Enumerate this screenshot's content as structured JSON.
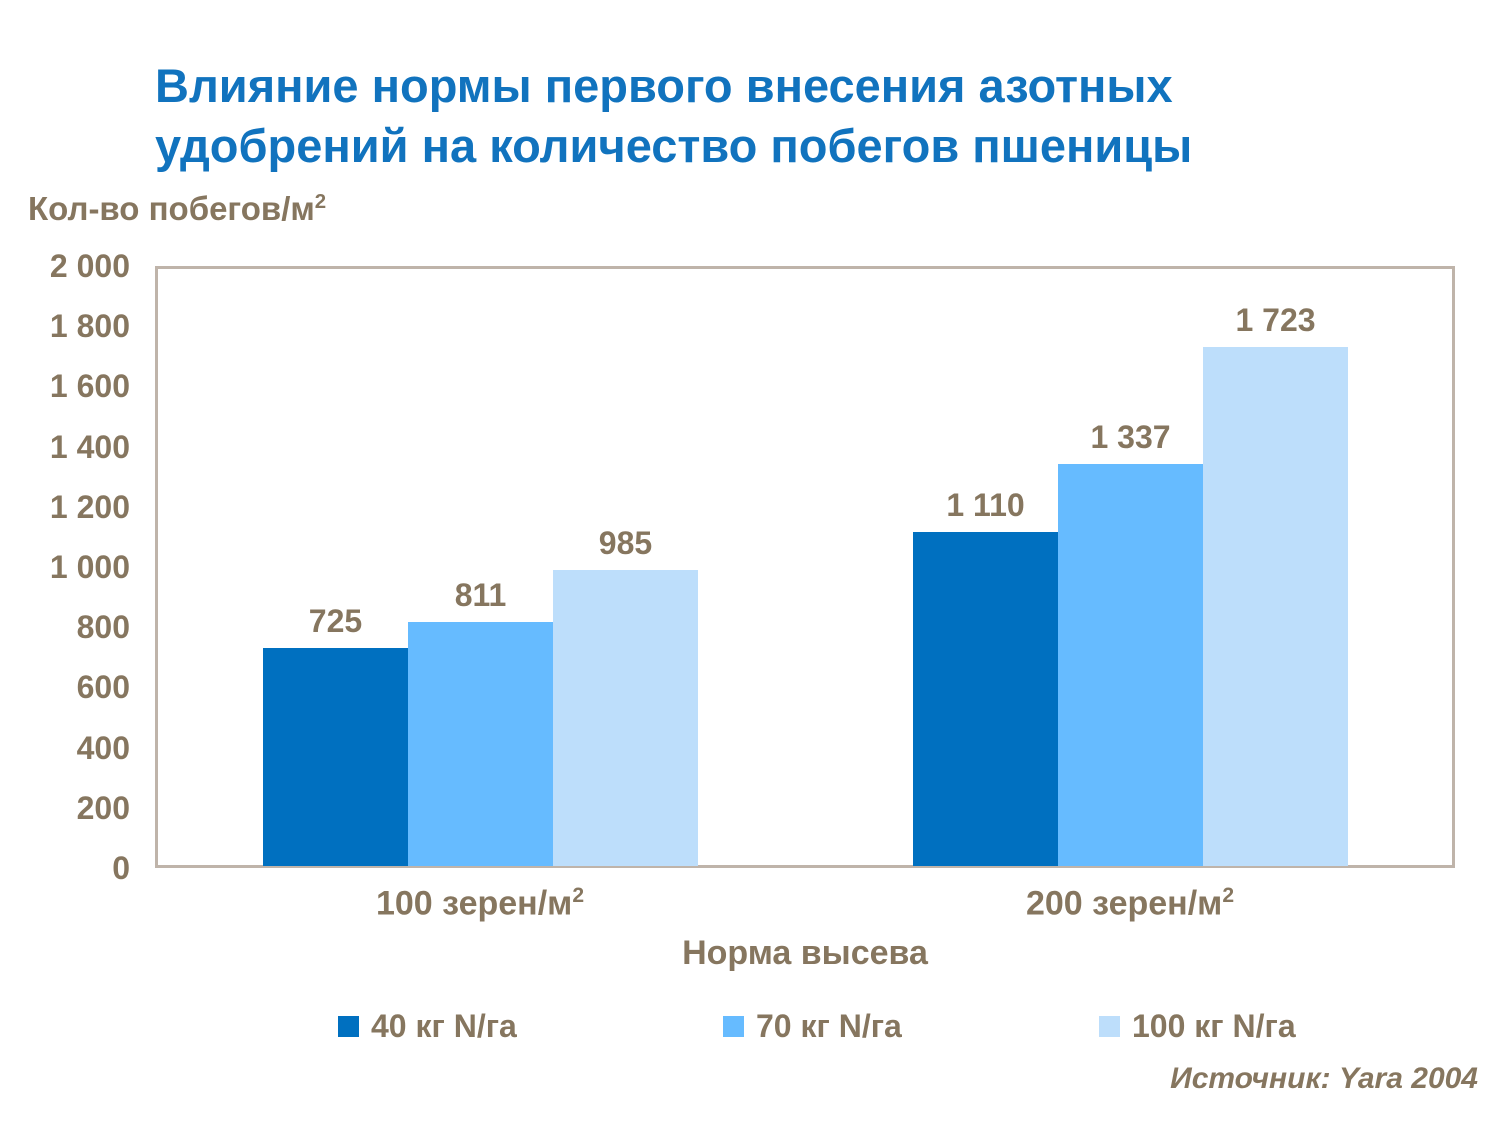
{
  "header": {
    "title_line1": "Влияние нормы первого внесения азотных",
    "title_line2": "удобрений на количество побегов пшеницы"
  },
  "y_axis": {
    "label_base": "Кол-во побегов/м",
    "label_sup": "2"
  },
  "x_axis": {
    "title": "Норма высева"
  },
  "source": "Источник: Yara 2004",
  "colors": {
    "title": "#1173BE",
    "axis_text": "#86765F",
    "plot_border": "#BFB4AA",
    "series": [
      "#0070C0",
      "#66BBFF",
      "#BDDEFB"
    ]
  },
  "chart_data": {
    "type": "bar",
    "title": "Влияние нормы первого внесения азотных удобрений на количество побегов пшеницы",
    "ylabel": "Кол-во побегов/м2",
    "xlabel": "Норма высева",
    "ylim": [
      0,
      2000
    ],
    "y_tick_step": 200,
    "y_tick_labels": [
      "0",
      "200",
      "400",
      "600",
      "800",
      "1 000",
      "1 200",
      "1 400",
      "1 600",
      "1 800",
      "2 000"
    ],
    "grid": false,
    "legend_position": "bottom",
    "categories": [
      {
        "label": "100 зерен/м2",
        "base": "100 зерен/м",
        "sup": "2"
      },
      {
        "label": "200 зерен/м2",
        "base": "200 зерен/м",
        "sup": "2"
      }
    ],
    "series": [
      {
        "name": "40 кг N/га",
        "color": "#0070C0",
        "values": [
          725,
          1110
        ],
        "value_labels": [
          "725",
          "1 110"
        ]
      },
      {
        "name": "70 кг N/га",
        "color": "#66BBFF",
        "values": [
          811,
          1337
        ],
        "value_labels": [
          "811",
          "1 337"
        ]
      },
      {
        "name": "100 кг N/га",
        "color": "#BDDEFB",
        "values": [
          985,
          1723
        ],
        "value_labels": [
          "985",
          "1 723"
        ]
      }
    ],
    "source": "Источник: Yara 2004"
  }
}
